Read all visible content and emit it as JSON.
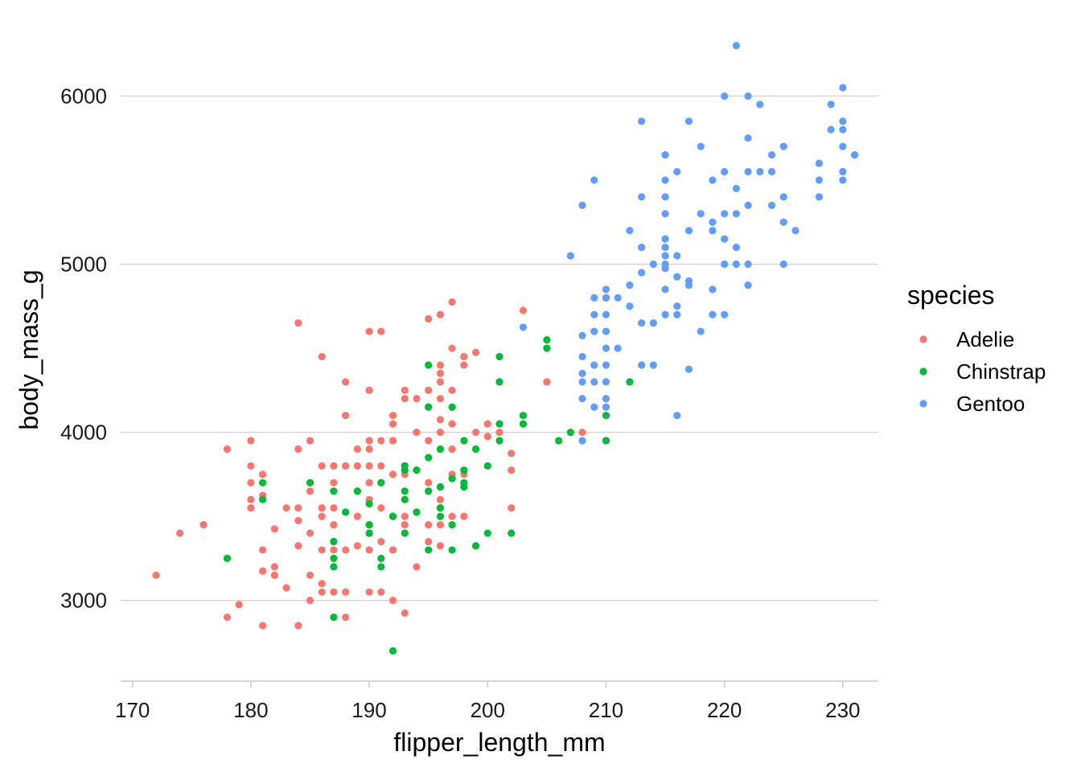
{
  "chart_data": {
    "type": "scatter",
    "xlabel": "flipper_length_mm",
    "ylabel": "body_mass_g",
    "xlim": [
      169,
      233
    ],
    "ylim": [
      2520,
      6380
    ],
    "xticks": [
      170,
      180,
      190,
      200,
      210,
      220,
      230
    ],
    "yticks": [
      3000,
      4000,
      5000,
      6000
    ],
    "grid": "horizontal major lines only",
    "legend": {
      "title": "species",
      "placement": "right"
    },
    "series": [
      {
        "name": "Adelie",
        "color": "#F8766D",
        "points": [
          [
            172,
            3150
          ],
          [
            174,
            3400
          ],
          [
            176,
            3450
          ],
          [
            178,
            3900
          ],
          [
            178,
            2900
          ],
          [
            179,
            2975
          ],
          [
            180,
            3950
          ],
          [
            180,
            3800
          ],
          [
            180,
            3700
          ],
          [
            180,
            3550
          ],
          [
            180,
            3600
          ],
          [
            181,
            3750
          ],
          [
            181,
            3625
          ],
          [
            181,
            3300
          ],
          [
            181,
            3175
          ],
          [
            181,
            2850
          ],
          [
            182,
            3425
          ],
          [
            182,
            3200
          ],
          [
            182,
            3150
          ],
          [
            183,
            3550
          ],
          [
            183,
            3075
          ],
          [
            184,
            4650
          ],
          [
            184,
            3900
          ],
          [
            184,
            3550
          ],
          [
            184,
            3325
          ],
          [
            184,
            2850
          ],
          [
            184,
            3475
          ],
          [
            185,
            3950
          ],
          [
            185,
            3700
          ],
          [
            185,
            3650
          ],
          [
            185,
            3400
          ],
          [
            185,
            3150
          ],
          [
            185,
            3000
          ],
          [
            186,
            4450
          ],
          [
            186,
            3800
          ],
          [
            186,
            3550
          ],
          [
            186,
            3500
          ],
          [
            186,
            3300
          ],
          [
            186,
            3100
          ],
          [
            186,
            3050
          ],
          [
            187,
            3800
          ],
          [
            187,
            3700
          ],
          [
            187,
            3550
          ],
          [
            187,
            3450
          ],
          [
            187,
            3350
          ],
          [
            187,
            3300
          ],
          [
            187,
            3050
          ],
          [
            188,
            4300
          ],
          [
            188,
            4100
          ],
          [
            188,
            3800
          ],
          [
            188,
            3300
          ],
          [
            188,
            3050
          ],
          [
            188,
            2900
          ],
          [
            189,
            3900
          ],
          [
            189,
            3800
          ],
          [
            189,
            3650
          ],
          [
            189,
            3500
          ],
          [
            189,
            3325
          ],
          [
            190,
            4600
          ],
          [
            190,
            4250
          ],
          [
            190,
            3950
          ],
          [
            190,
            3900
          ],
          [
            190,
            3800
          ],
          [
            190,
            3700
          ],
          [
            190,
            3600
          ],
          [
            190,
            3450
          ],
          [
            190,
            3400
          ],
          [
            190,
            3300
          ],
          [
            190,
            3050
          ],
          [
            191,
            4600
          ],
          [
            191,
            3950
          ],
          [
            191,
            3800
          ],
          [
            191,
            3700
          ],
          [
            191,
            3550
          ],
          [
            191,
            3350
          ],
          [
            191,
            3050
          ],
          [
            192,
            4100
          ],
          [
            192,
            4050
          ],
          [
            192,
            3950
          ],
          [
            192,
            3750
          ],
          [
            192,
            3500
          ],
          [
            192,
            3300
          ],
          [
            192,
            3000
          ],
          [
            193,
            4250
          ],
          [
            193,
            4200
          ],
          [
            193,
            3800
          ],
          [
            193,
            3750
          ],
          [
            193,
            3600
          ],
          [
            193,
            3500
          ],
          [
            193,
            3450
          ],
          [
            193,
            2925
          ],
          [
            194,
            4200
          ],
          [
            194,
            4000
          ],
          [
            194,
            3525
          ],
          [
            194,
            3200
          ],
          [
            195,
            4675
          ],
          [
            195,
            4250
          ],
          [
            195,
            4150
          ],
          [
            195,
            3950
          ],
          [
            195,
            3700
          ],
          [
            195,
            3450
          ],
          [
            195,
            3350
          ],
          [
            196,
            4700
          ],
          [
            196,
            4400
          ],
          [
            196,
            4350
          ],
          [
            196,
            4300
          ],
          [
            196,
            4200
          ],
          [
            196,
            4075
          ],
          [
            196,
            4000
          ],
          [
            196,
            3600
          ],
          [
            196,
            3550
          ],
          [
            196,
            3450
          ],
          [
            196,
            3325
          ],
          [
            197,
            4775
          ],
          [
            197,
            4500
          ],
          [
            197,
            4250
          ],
          [
            197,
            4050
          ],
          [
            197,
            3900
          ],
          [
            197,
            3750
          ],
          [
            197,
            3500
          ],
          [
            198,
            4450
          ],
          [
            198,
            4400
          ],
          [
            198,
            3750
          ],
          [
            198,
            3500
          ],
          [
            199,
            4475
          ],
          [
            199,
            4000
          ],
          [
            200,
            4050
          ],
          [
            200,
            3975
          ],
          [
            201,
            4000
          ],
          [
            202,
            3875
          ],
          [
            202,
            3775
          ],
          [
            202,
            3550
          ],
          [
            203,
            4725
          ],
          [
            205,
            4300
          ],
          [
            208,
            4000
          ],
          [
            210,
            3950
          ]
        ]
      },
      {
        "name": "Chinstrap",
        "color": "#00BA38",
        "points": [
          [
            178,
            3250
          ],
          [
            181,
            3700
          ],
          [
            181,
            3600
          ],
          [
            185,
            3700
          ],
          [
            187,
            3650
          ],
          [
            187,
            3350
          ],
          [
            187,
            3250
          ],
          [
            187,
            3200
          ],
          [
            187,
            2900
          ],
          [
            188,
            3525
          ],
          [
            189,
            3650
          ],
          [
            190,
            3575
          ],
          [
            190,
            3450
          ],
          [
            190,
            3400
          ],
          [
            191,
            3700
          ],
          [
            191,
            3250
          ],
          [
            191,
            3200
          ],
          [
            192,
            3500
          ],
          [
            192,
            2700
          ],
          [
            193,
            3800
          ],
          [
            193,
            3775
          ],
          [
            193,
            3650
          ],
          [
            193,
            3600
          ],
          [
            193,
            3400
          ],
          [
            194,
            3775
          ],
          [
            194,
            3525
          ],
          [
            195,
            4400
          ],
          [
            195,
            4150
          ],
          [
            195,
            3850
          ],
          [
            195,
            3650
          ],
          [
            195,
            3300
          ],
          [
            196,
            3900
          ],
          [
            196,
            3675
          ],
          [
            196,
            3550
          ],
          [
            196,
            3500
          ],
          [
            197,
            4150
          ],
          [
            197,
            3725
          ],
          [
            197,
            3450
          ],
          [
            197,
            3300
          ],
          [
            198,
            3950
          ],
          [
            198,
            3775
          ],
          [
            198,
            3700
          ],
          [
            198,
            3675
          ],
          [
            199,
            3900
          ],
          [
            199,
            3325
          ],
          [
            200,
            3800
          ],
          [
            200,
            3400
          ],
          [
            201,
            4450
          ],
          [
            201,
            4300
          ],
          [
            201,
            4050
          ],
          [
            201,
            3950
          ],
          [
            202,
            3400
          ],
          [
            203,
            4100
          ],
          [
            203,
            4050
          ],
          [
            205,
            4550
          ],
          [
            205,
            4500
          ],
          [
            206,
            3950
          ],
          [
            207,
            4000
          ],
          [
            210,
            4800
          ],
          [
            210,
            4100
          ],
          [
            210,
            3950
          ],
          [
            212,
            4300
          ]
        ]
      },
      {
        "name": "Gentoo",
        "color": "#619CFF",
        "points": [
          [
            203,
            4625
          ],
          [
            207,
            5050
          ],
          [
            208,
            5350
          ],
          [
            208,
            4575
          ],
          [
            208,
            4450
          ],
          [
            208,
            4350
          ],
          [
            208,
            4300
          ],
          [
            208,
            4200
          ],
          [
            208,
            3950
          ],
          [
            209,
            5500
          ],
          [
            209,
            4800
          ],
          [
            209,
            4700
          ],
          [
            209,
            4600
          ],
          [
            209,
            4400
          ],
          [
            209,
            4300
          ],
          [
            209,
            4150
          ],
          [
            210,
            4850
          ],
          [
            210,
            4800
          ],
          [
            210,
            4700
          ],
          [
            210,
            4600
          ],
          [
            210,
            4500
          ],
          [
            210,
            4400
          ],
          [
            210,
            4300
          ],
          [
            210,
            4200
          ],
          [
            210,
            4150
          ],
          [
            211,
            4800
          ],
          [
            211,
            4500
          ],
          [
            212,
            5200
          ],
          [
            212,
            4875
          ],
          [
            212,
            4750
          ],
          [
            213,
            5850
          ],
          [
            213,
            5400
          ],
          [
            213,
            5100
          ],
          [
            213,
            4950
          ],
          [
            213,
            4650
          ],
          [
            213,
            4400
          ],
          [
            214,
            5000
          ],
          [
            214,
            4650
          ],
          [
            214,
            4400
          ],
          [
            215,
            5650
          ],
          [
            215,
            5500
          ],
          [
            215,
            5400
          ],
          [
            215,
            5300
          ],
          [
            215,
            5150
          ],
          [
            215,
            5100
          ],
          [
            215,
            5050
          ],
          [
            215,
            5000
          ],
          [
            215,
            4975
          ],
          [
            215,
            4850
          ],
          [
            215,
            4700
          ],
          [
            216,
            5550
          ],
          [
            216,
            5050
          ],
          [
            216,
            4925
          ],
          [
            216,
            4750
          ],
          [
            216,
            4700
          ],
          [
            216,
            4100
          ],
          [
            217,
            5850
          ],
          [
            217,
            5200
          ],
          [
            217,
            4900
          ],
          [
            217,
            4875
          ],
          [
            217,
            4375
          ],
          [
            218,
            5700
          ],
          [
            218,
            5300
          ],
          [
            218,
            4600
          ],
          [
            219,
            5500
          ],
          [
            219,
            5250
          ],
          [
            219,
            5200
          ],
          [
            219,
            4850
          ],
          [
            219,
            4700
          ],
          [
            220,
            5550
          ],
          [
            220,
            5300
          ],
          [
            220,
            5150
          ],
          [
            220,
            5000
          ],
          [
            220,
            4700
          ],
          [
            221,
            6300
          ],
          [
            221,
            5450
          ],
          [
            221,
            5300
          ],
          [
            221,
            5100
          ],
          [
            221,
            5000
          ],
          [
            222,
            6000
          ],
          [
            222,
            5750
          ],
          [
            222,
            5550
          ],
          [
            222,
            5350
          ],
          [
            222,
            5000
          ],
          [
            222,
            4875
          ],
          [
            223,
            5950
          ],
          [
            223,
            5550
          ],
          [
            224,
            5650
          ],
          [
            224,
            5550
          ],
          [
            224,
            5350
          ],
          [
            225,
            5700
          ],
          [
            225,
            5400
          ],
          [
            225,
            5250
          ],
          [
            225,
            5000
          ],
          [
            226,
            5200
          ],
          [
            228,
            5600
          ],
          [
            228,
            5500
          ],
          [
            228,
            5400
          ],
          [
            229,
            5950
          ],
          [
            229,
            5800
          ],
          [
            230,
            6050
          ],
          [
            230,
            5850
          ],
          [
            230,
            5800
          ],
          [
            230,
            5700
          ],
          [
            230,
            5550
          ],
          [
            230,
            5500
          ],
          [
            231,
            5650
          ],
          [
            220,
            6000
          ]
        ]
      }
    ]
  }
}
